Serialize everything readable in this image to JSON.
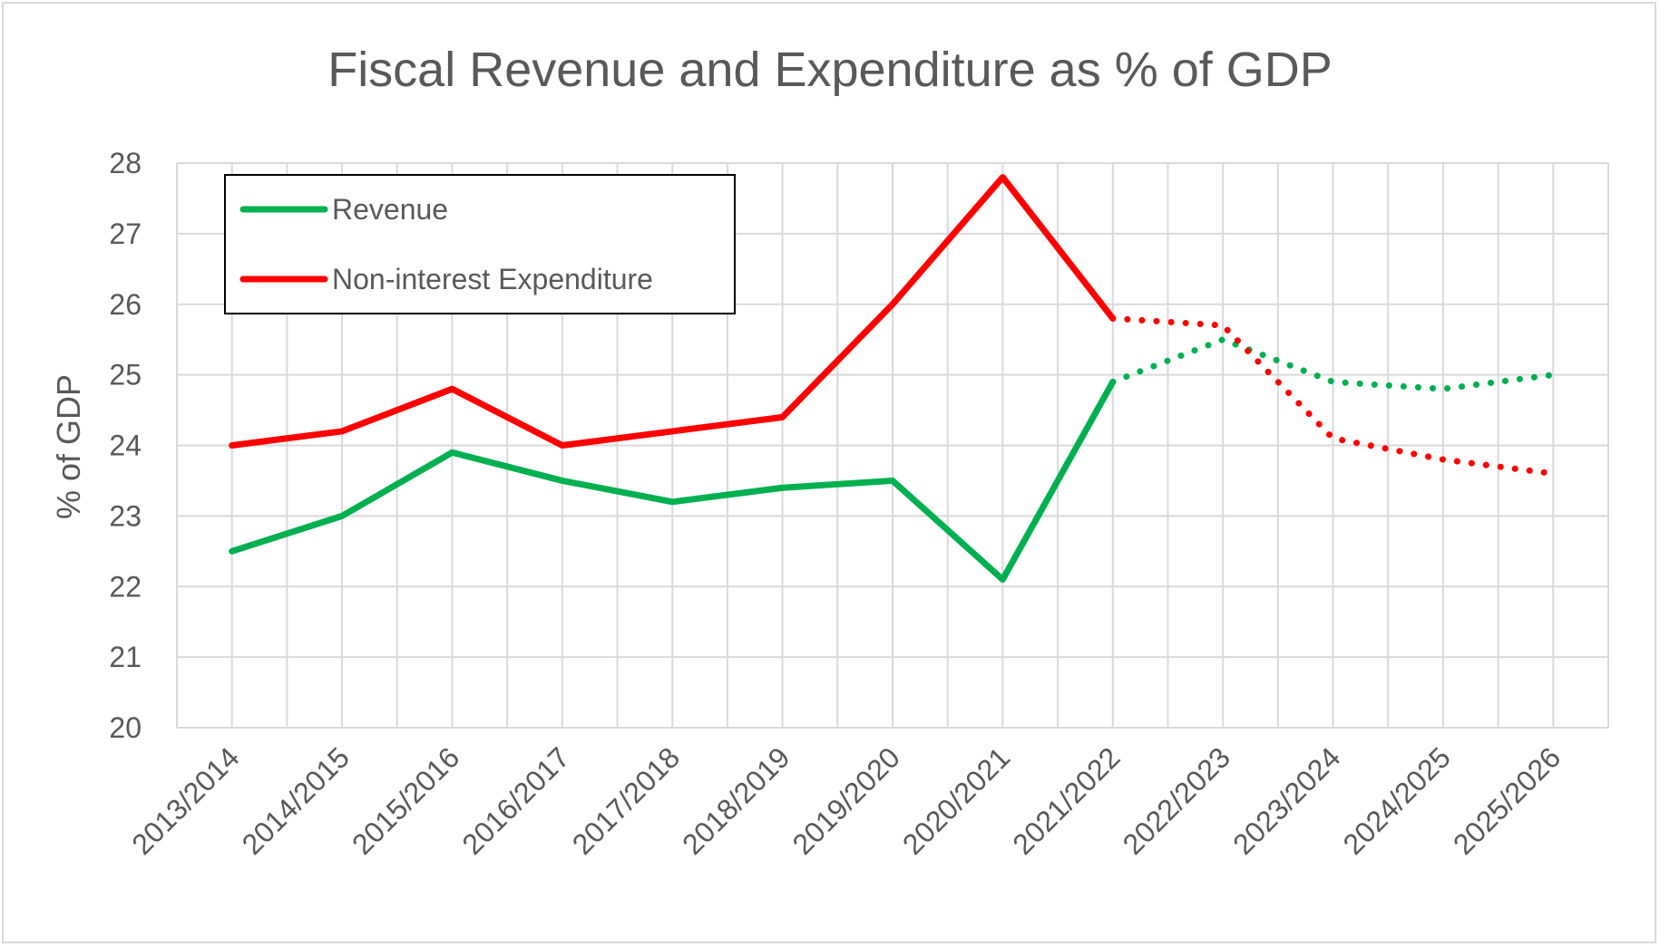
{
  "chart_data": {
    "type": "line",
    "title": "Fiscal Revenue and Expenditure as % of GDP",
    "xlabel": "",
    "ylabel": "% of GDP",
    "ylim": [
      20,
      28
    ],
    "yticks": [
      20,
      21,
      22,
      23,
      24,
      25,
      26,
      27,
      28
    ],
    "grid": true,
    "legend_position": "top-left",
    "categories": [
      "2013/2014",
      "2014/2015",
      "2015/2016",
      "2016/2017",
      "2017/2018",
      "2018/2019",
      "2019/2020",
      "2020/2021",
      "2021/2022",
      "2022/2023",
      "2023/2024",
      "2024/2025",
      "2025/2026"
    ],
    "actual_through": "2021/2022",
    "series": [
      {
        "name": "Revenue",
        "color": "#00b050",
        "values": [
          22.5,
          23.0,
          23.9,
          23.5,
          23.2,
          23.4,
          23.5,
          22.1,
          24.9,
          25.5,
          24.9,
          24.8,
          25.0
        ]
      },
      {
        "name": "Non-interest Expenditure",
        "color": "#ff0000",
        "values": [
          24.0,
          24.2,
          24.8,
          24.0,
          24.2,
          24.4,
          26.0,
          27.8,
          25.8,
          25.7,
          24.1,
          23.8,
          23.6
        ]
      }
    ]
  }
}
